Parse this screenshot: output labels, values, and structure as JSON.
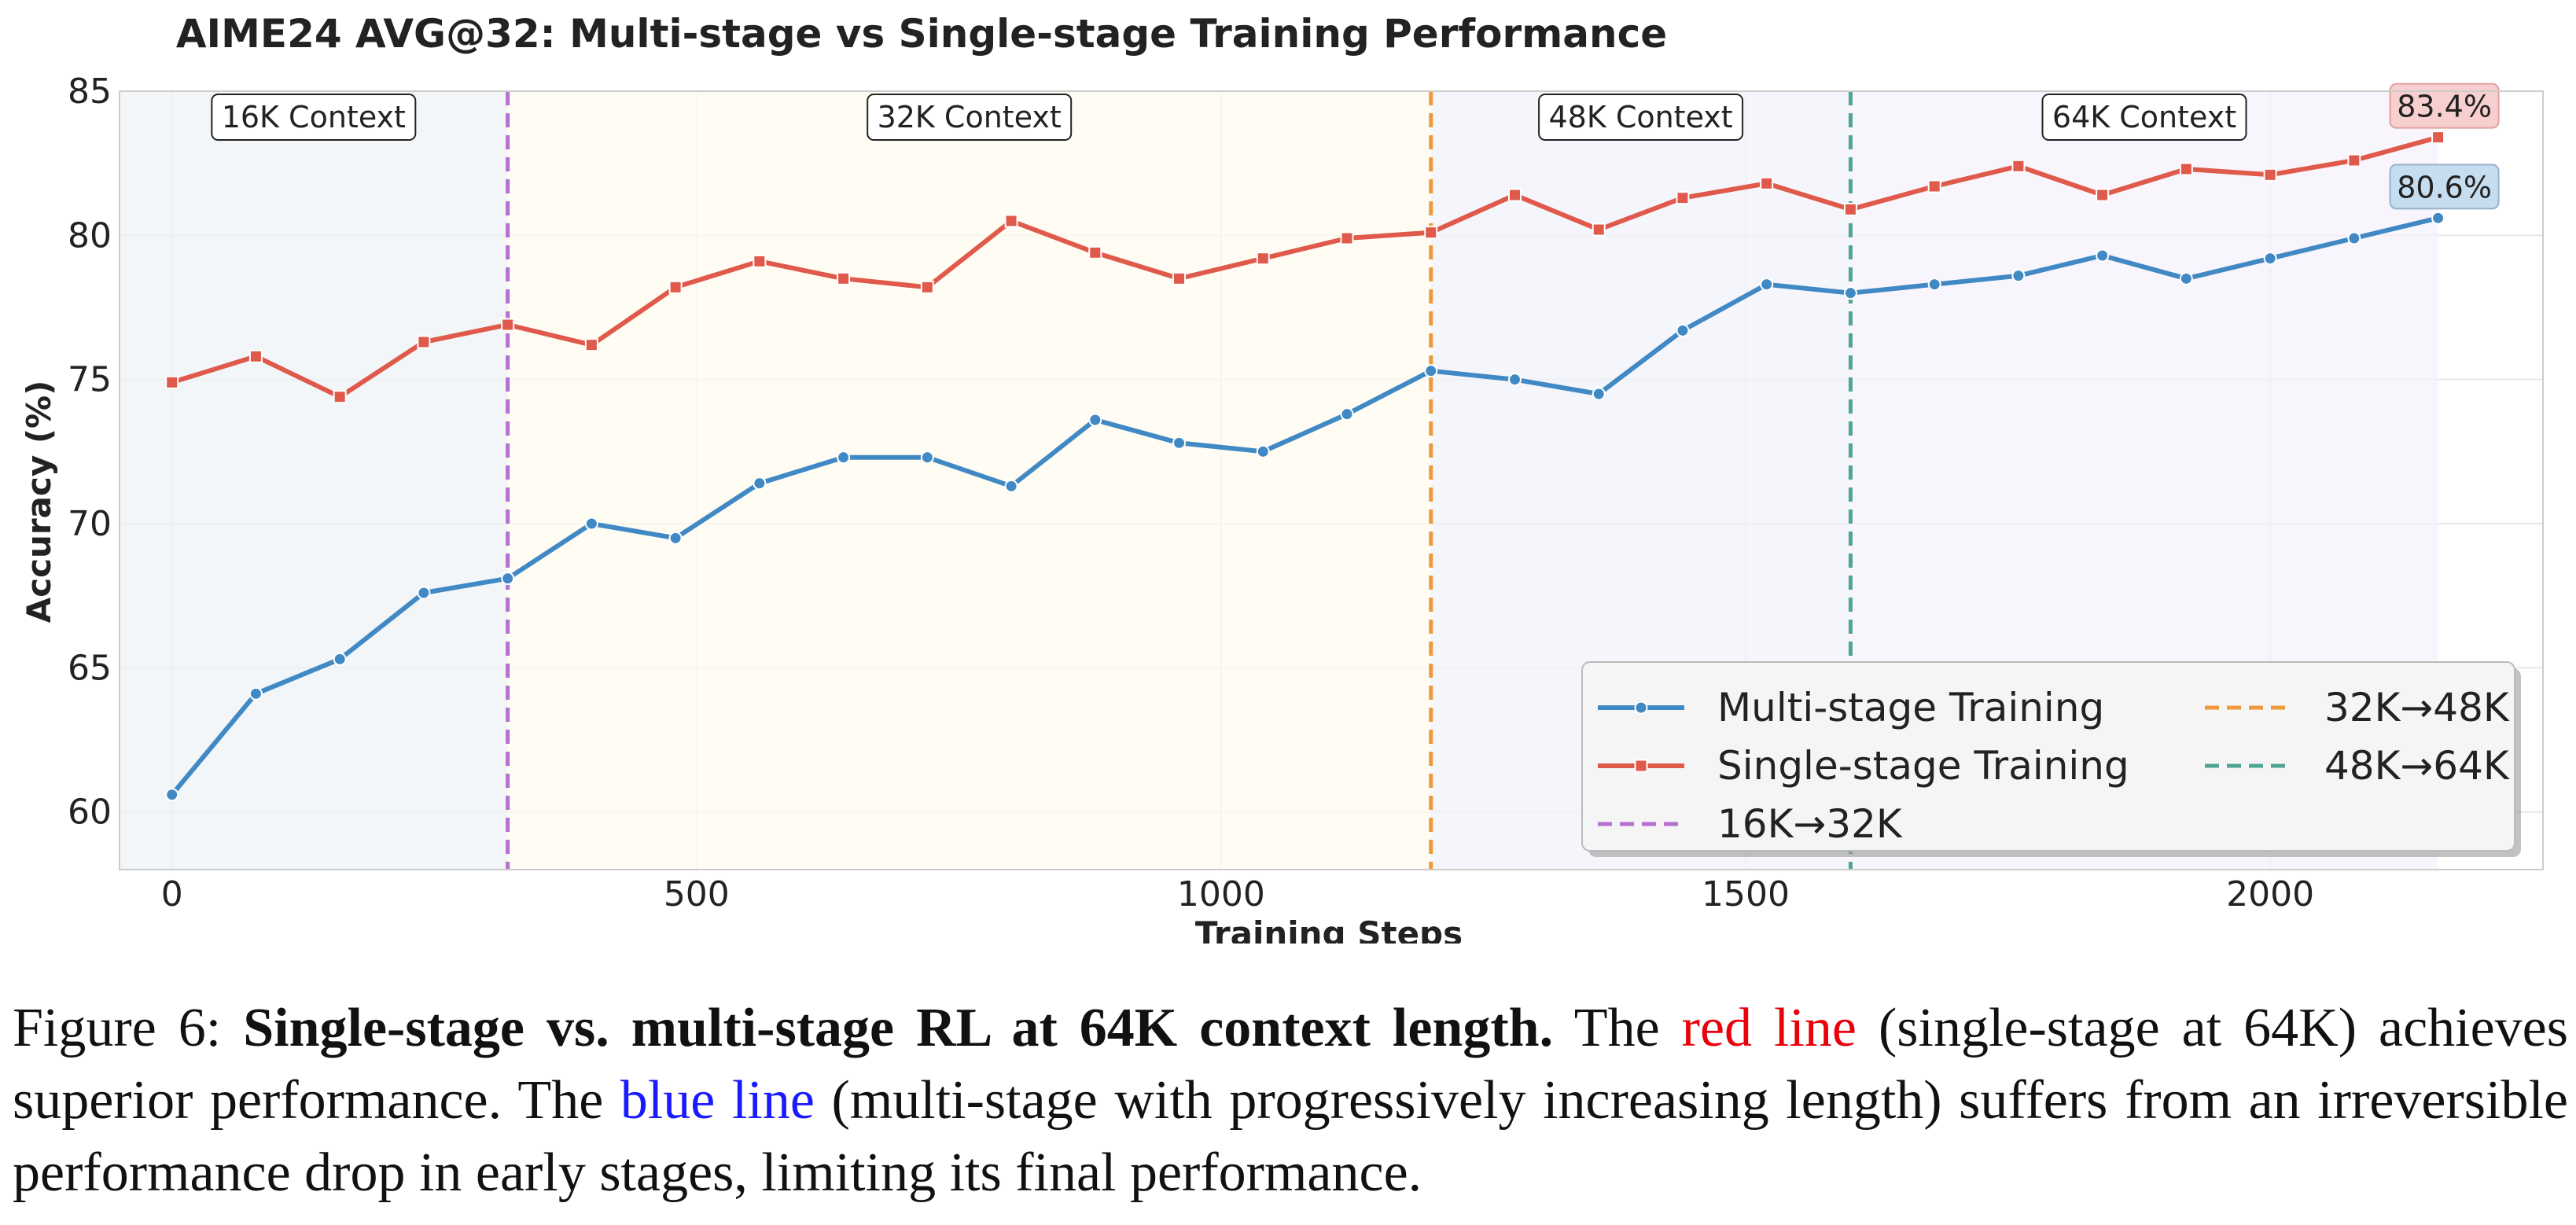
{
  "chart_data": {
    "type": "line",
    "title": "AIME24 AVG@32: Multi-stage vs Single-stage Training Performance",
    "xlabel": "Training Steps",
    "ylabel": "Accuracy (%)",
    "xlim": [
      -50,
      2260
    ],
    "ylim": [
      58,
      85
    ],
    "xticks": [
      0,
      500,
      1000,
      1500,
      2000
    ],
    "yticks": [
      60,
      65,
      70,
      75,
      80,
      85
    ],
    "grid": true,
    "x": [
      0,
      80,
      160,
      240,
      320,
      400,
      480,
      560,
      640,
      720,
      800,
      880,
      960,
      1040,
      1120,
      1200,
      1280,
      1360,
      1440,
      1520,
      1600,
      1680,
      1760,
      1840,
      1920,
      2000,
      2080,
      2160
    ],
    "series": [
      {
        "name": "Multi-stage Training",
        "color": "#4189c4",
        "marker": "circle",
        "values": [
          60.6,
          64.1,
          65.3,
          67.6,
          68.1,
          70.0,
          69.5,
          71.4,
          72.3,
          72.3,
          71.3,
          73.6,
          72.8,
          72.5,
          73.8,
          75.3,
          75.0,
          74.5,
          76.7,
          78.3,
          78.0,
          78.3,
          78.6,
          79.3,
          78.5,
          79.2,
          79.9,
          80.6
        ]
      },
      {
        "name": "Single-stage Training",
        "color": "#e05a4b",
        "marker": "square",
        "values": [
          74.9,
          75.8,
          74.4,
          76.3,
          76.9,
          76.2,
          78.2,
          79.1,
          78.5,
          78.2,
          80.5,
          79.4,
          78.5,
          79.2,
          79.9,
          80.1,
          81.4,
          80.2,
          81.3,
          81.8,
          80.9,
          81.7,
          82.4,
          81.4,
          82.3,
          82.1,
          82.6,
          83.4
        ]
      }
    ],
    "stages": [
      {
        "label": "16K Context",
        "from": -50,
        "to": 320,
        "color": "#eef3f6"
      },
      {
        "label": "32K Context",
        "from": 320,
        "to": 1200,
        "color": "#fffbef"
      },
      {
        "label": "48K Context",
        "from": 1200,
        "to": 1600,
        "color": "#f1f3fb"
      },
      {
        "label": "64K Context",
        "from": 1600,
        "to": 2160,
        "color": "#f6f2fb"
      }
    ],
    "transitions": [
      {
        "label": "16K→32K",
        "x": 320,
        "color": "#b46fd0"
      },
      {
        "label": "32K→48K",
        "x": 1200,
        "color": "#ee9a3a"
      },
      {
        "label": "48K→64K",
        "x": 1600,
        "color": "#4ea592"
      }
    ],
    "end_labels": [
      {
        "text": "83.4%",
        "series": 1,
        "fill": "#f8cfcf",
        "stroke": "#e0a0a0"
      },
      {
        "text": "80.6%",
        "series": 0,
        "fill": "#c6dcef",
        "stroke": "#97b3cc"
      }
    ],
    "legend": {
      "placement": "lower-right",
      "columns": 2
    }
  },
  "caption": {
    "prefix": "Figure 6: ",
    "bold": "Single-stage vs. multi-stage RL at 64K context length.",
    "t1": " The ",
    "red": "red line",
    "t2": " (single-stage at 64K) achieves superior performance. The ",
    "blue": "blue line",
    "t3": " (multi-stage with progressively increasing length) suffers from an irreversible performance drop in early stages, limiting its final performance."
  }
}
